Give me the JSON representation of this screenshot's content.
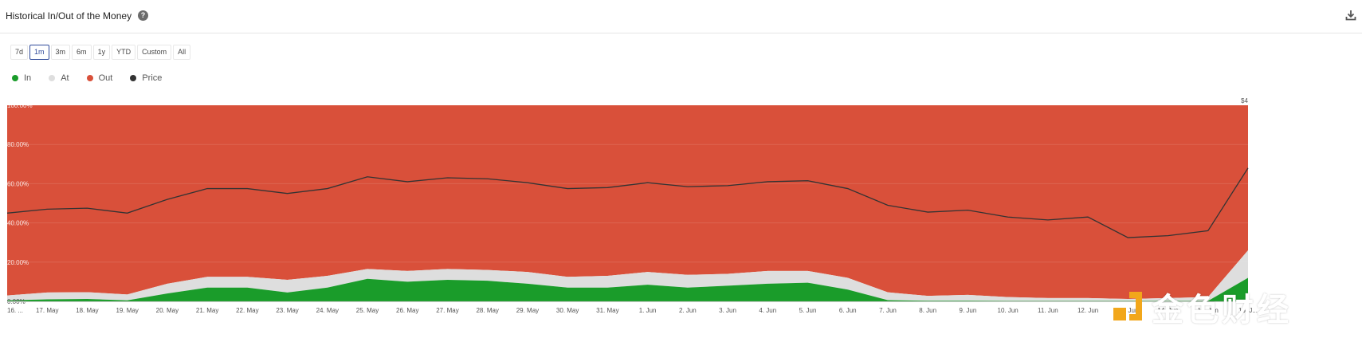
{
  "header": {
    "title": "Historical In/Out of the Money",
    "help_icon": "question-circle-icon",
    "download_icon": "download-icon"
  },
  "range_buttons": [
    "7d",
    "1m",
    "3m",
    "6m",
    "1y",
    "YTD",
    "Custom",
    "All"
  ],
  "active_range": "1m",
  "legend": [
    {
      "label": "In",
      "color": "#1a9c2a"
    },
    {
      "label": "At",
      "color": "#dedede"
    },
    {
      "label": "Out",
      "color": "#d9503a"
    },
    {
      "label": "Price",
      "color": "#333333"
    }
  ],
  "colors": {
    "in": "#1a9c2a",
    "at": "#dedede",
    "out": "#d9503a",
    "price": "#333333"
  },
  "watermark": {
    "text": "金色财经"
  },
  "chart_data": {
    "type": "area",
    "stacked": true,
    "ylim": [
      0,
      100
    ],
    "y_ticks": [
      "0.00%",
      "20.00%",
      "40.00%",
      "60.00%",
      "80.00%",
      "100.00%"
    ],
    "y2_ticks": [
      "$4"
    ],
    "categories": [
      "16. ...",
      "17. May",
      "18. May",
      "19. May",
      "20. May",
      "21. May",
      "22. May",
      "23. May",
      "24. May",
      "25. May",
      "26. May",
      "27. May",
      "28. May",
      "29. May",
      "30. May",
      "31. May",
      "1. Jun",
      "2. Jun",
      "3. Jun",
      "4. Jun",
      "5. Jun",
      "6. Jun",
      "7. Jun",
      "8. Jun",
      "9. Jun",
      "10. Jun",
      "11. Jun",
      "12. Jun",
      "13. Jun",
      "14. Jun",
      "15. Jun",
      "16. J..."
    ],
    "series": [
      {
        "name": "In",
        "values": [
          0.5,
          1.0,
          1.2,
          0.5,
          4.0,
          7.0,
          7.0,
          4.5,
          7.0,
          11.5,
          10.0,
          11.0,
          10.5,
          9.0,
          7.0,
          7.0,
          8.5,
          7.0,
          8.0,
          9.0,
          9.5,
          6.0,
          0.6,
          0.3,
          0.3,
          0.2,
          0.2,
          0.2,
          0.2,
          0.2,
          0.2,
          12.0
        ]
      },
      {
        "name": "At",
        "values": [
          2.5,
          3.5,
          3.5,
          3.0,
          5.0,
          5.5,
          5.5,
          6.5,
          6.0,
          5.0,
          5.5,
          5.5,
          5.5,
          6.0,
          5.5,
          6.0,
          6.5,
          6.5,
          6.0,
          6.5,
          6.0,
          6.0,
          4.0,
          2.5,
          3.0,
          2.0,
          1.5,
          1.5,
          1.0,
          1.5,
          2.0,
          14.0
        ]
      },
      {
        "name": "Out",
        "values": [
          97.0,
          95.5,
          95.3,
          96.5,
          91.0,
          87.5,
          87.5,
          89.0,
          87.0,
          83.5,
          84.5,
          83.5,
          84.0,
          85.0,
          87.5,
          87.0,
          85.0,
          86.5,
          86.0,
          84.5,
          84.5,
          88.0,
          95.4,
          97.2,
          96.7,
          97.8,
          98.3,
          98.3,
          98.8,
          98.3,
          97.8,
          74.0
        ]
      },
      {
        "name": "Price",
        "values": [
          45,
          47,
          47.5,
          45,
          52,
          57.5,
          57.5,
          55,
          57.5,
          63.5,
          61,
          63,
          62.5,
          60.5,
          57.5,
          58,
          60.5,
          58.5,
          59,
          61,
          61.5,
          57.5,
          49,
          45.5,
          46.5,
          43,
          41.5,
          43,
          32.5,
          33.5,
          36,
          68
        ]
      }
    ]
  }
}
